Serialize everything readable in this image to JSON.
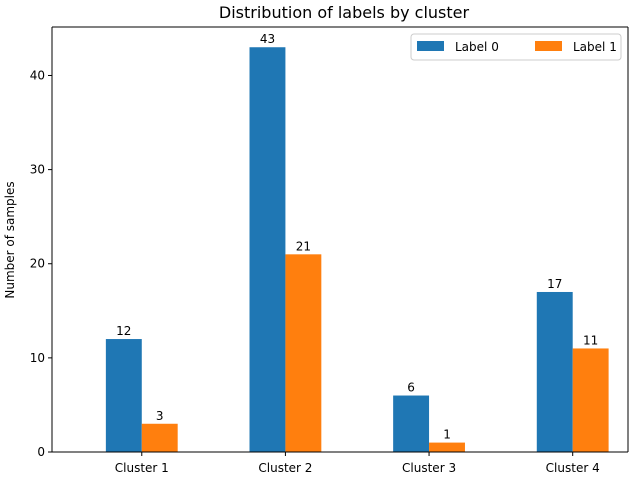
{
  "chart_data": {
    "type": "bar",
    "title": "Distribution of labels by cluster",
    "xlabel": "",
    "ylabel": "Number of samples",
    "categories": [
      "Cluster 1",
      "Cluster 2",
      "Cluster 3",
      "Cluster 4"
    ],
    "series": [
      {
        "name": "Label 0",
        "color": "#1f77b4",
        "values": [
          12,
          43,
          6,
          17
        ]
      },
      {
        "name": "Label 1",
        "color": "#ff7f0e",
        "values": [
          3,
          21,
          1,
          11
        ]
      }
    ],
    "ylim": [
      0,
      45.15
    ],
    "yticks": [
      0,
      10,
      20,
      30,
      40
    ],
    "grid": false,
    "legend_position": "top-right",
    "legend_columns": 2,
    "data_labels": true
  }
}
